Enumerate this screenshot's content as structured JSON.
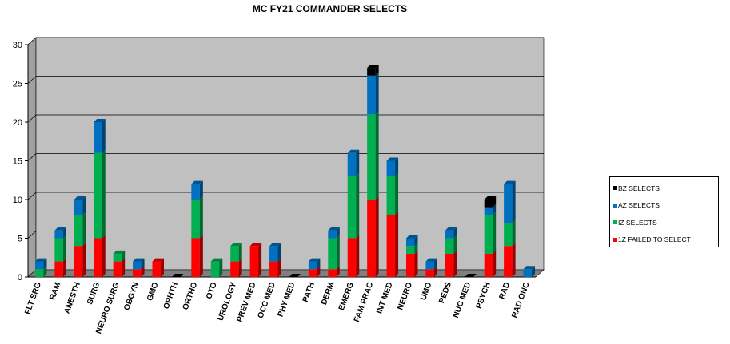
{
  "chart_data": {
    "type": "bar",
    "stacked": true,
    "title": "MC FY21 COMMANDER SELECTS",
    "xlabel": "",
    "ylabel": "",
    "ylim": [
      0,
      30
    ],
    "yticks": [
      0,
      5,
      10,
      15,
      20,
      25,
      30
    ],
    "grid": true,
    "legend_position": "right",
    "categories": [
      "FLT SRG",
      "RAM",
      "ANESTH",
      "SURG",
      "NEURO SURG",
      "OBGYN",
      "GMO",
      "OPHTH",
      "ORTHO",
      "OTO",
      "UROLOGY",
      "PREV MED",
      "OCC MED",
      "PHY MED",
      "PATH",
      "DERM",
      "EMERG",
      "FAM PRAC",
      "INT MED",
      "NEURO",
      "UMO",
      "PEDS",
      "NUC MED",
      "PSYCH",
      "RAD",
      "RAD ONC"
    ],
    "series": [
      {
        "name": "1Z FAILED TO SELECT",
        "color": "#ff0000",
        "values": [
          0,
          2,
          4,
          5,
          2,
          1,
          2,
          0,
          5,
          0,
          2,
          4,
          2,
          0,
          1,
          1,
          5,
          10,
          8,
          3,
          1,
          3,
          0,
          3,
          4,
          0
        ]
      },
      {
        "name": "IZ SELECTS",
        "color": "#00b050",
        "values": [
          1,
          3,
          4,
          11,
          1,
          0,
          0,
          0,
          5,
          2,
          2,
          0,
          0,
          0,
          0,
          4,
          8,
          11,
          5,
          1,
          0,
          2,
          0,
          5,
          3,
          0
        ]
      },
      {
        "name": "AZ SELECTS",
        "color": "#0070c0",
        "values": [
          1,
          1,
          2,
          4,
          0,
          1,
          0,
          0,
          2,
          0,
          0,
          0,
          2,
          0,
          1,
          1,
          3,
          5,
          2,
          1,
          1,
          1,
          0,
          1,
          5,
          1
        ]
      },
      {
        "name": "BZ SELECTS",
        "color": "#000000",
        "values": [
          0,
          0,
          0,
          0,
          0,
          0,
          0,
          0,
          0,
          0,
          0,
          0,
          0,
          0,
          0,
          0,
          0,
          1,
          0,
          0,
          0,
          0,
          0,
          1,
          0,
          0
        ]
      }
    ],
    "legend_order": [
      "BZ SELECTS",
      "AZ SELECTS",
      "IZ SELECTS",
      "1Z FAILED TO SELECT"
    ],
    "plot_background": "#c0c0c0",
    "floor_color": "#808080"
  }
}
